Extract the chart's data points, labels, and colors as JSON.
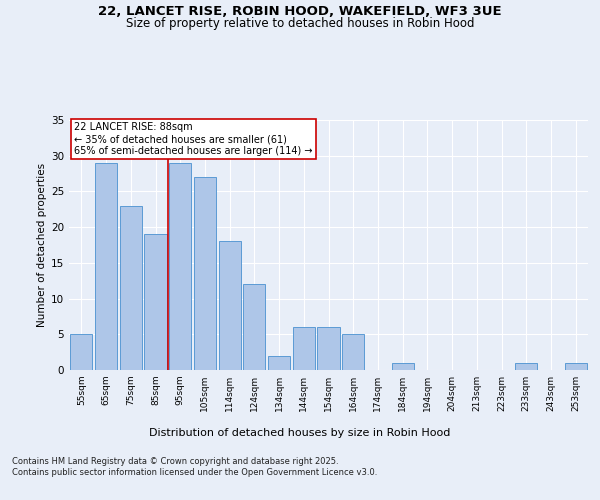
{
  "title_line1": "22, LANCET RISE, ROBIN HOOD, WAKEFIELD, WF3 3UE",
  "title_line2": "Size of property relative to detached houses in Robin Hood",
  "xlabel": "Distribution of detached houses by size in Robin Hood",
  "ylabel": "Number of detached properties",
  "categories": [
    "55sqm",
    "65sqm",
    "75sqm",
    "85sqm",
    "95sqm",
    "105sqm",
    "114sqm",
    "124sqm",
    "134sqm",
    "144sqm",
    "154sqm",
    "164sqm",
    "174sqm",
    "184sqm",
    "194sqm",
    "204sqm",
    "213sqm",
    "223sqm",
    "233sqm",
    "243sqm",
    "253sqm"
  ],
  "values": [
    5,
    29,
    23,
    19,
    29,
    27,
    18,
    12,
    2,
    6,
    6,
    5,
    0,
    1,
    0,
    0,
    0,
    0,
    1,
    0,
    1
  ],
  "bar_color": "#aec6e8",
  "bar_edge_color": "#5b9bd5",
  "annotation_text": "22 LANCET RISE: 88sqm\n← 35% of detached houses are smaller (61)\n65% of semi-detached houses are larger (114) →",
  "vline_x": 3.5,
  "vline_color": "#cc0000",
  "box_color": "#cc0000",
  "ylim": [
    0,
    35
  ],
  "yticks": [
    0,
    5,
    10,
    15,
    20,
    25,
    30,
    35
  ],
  "background_color": "#e8eef8",
  "grid_color": "#ffffff",
  "fig_background": "#e8eef8",
  "footnote": "Contains HM Land Registry data © Crown copyright and database right 2025.\nContains public sector information licensed under the Open Government Licence v3.0."
}
